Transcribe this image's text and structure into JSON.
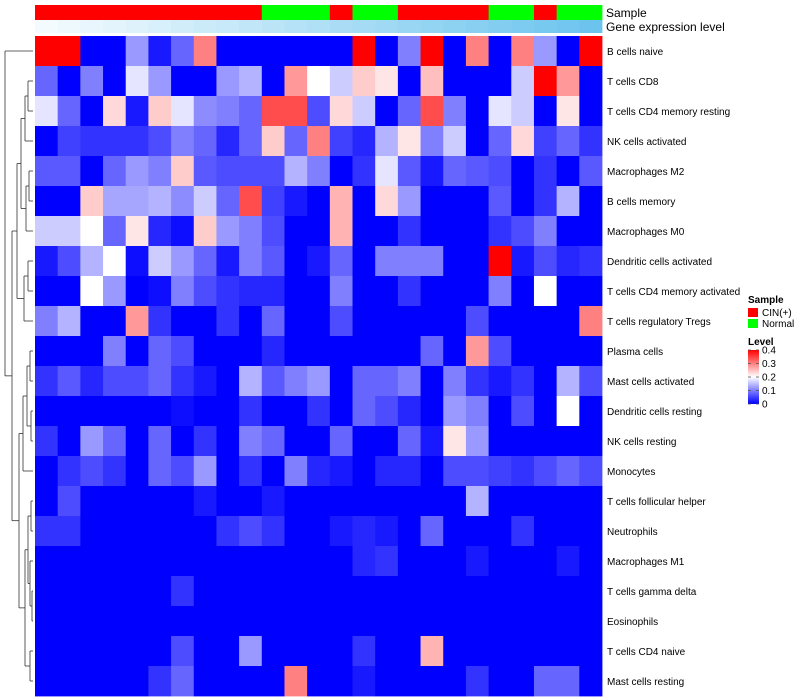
{
  "chart_data": {
    "type": "heatmap",
    "title": "",
    "annotation_tracks": [
      {
        "name": "Sample",
        "label": "Sample"
      },
      {
        "name": "Gene expression level",
        "label": "Gene expression level"
      }
    ],
    "sample_groups": [
      "CIN",
      "CIN",
      "CIN",
      "CIN",
      "CIN",
      "CIN",
      "CIN",
      "CIN",
      "CIN",
      "CIN",
      "Normal",
      "Normal",
      "Normal",
      "CIN",
      "Normal",
      "Normal",
      "CIN",
      "CIN",
      "CIN",
      "CIN",
      "Normal",
      "Normal",
      "CIN",
      "Normal",
      "Normal"
    ],
    "expression_level_index": [
      0,
      1,
      2,
      3,
      4,
      5,
      6,
      7,
      8,
      9,
      10,
      11,
      12,
      13,
      14,
      15,
      16,
      17,
      18,
      19,
      20,
      21,
      22,
      23,
      24
    ],
    "rows": [
      "B cells naive",
      "T cells CD8",
      "T cells CD4 memory resting",
      "NK cells activated",
      "Macrophages M2",
      "B cells memory",
      "Macrophages M0",
      "Dendritic cells activated",
      "T cells CD4 memory activated",
      "T cells regulatory  Tregs",
      "Plasma cells",
      "Mast cells activated",
      "Dendritic cells resting",
      "NK cells resting",
      "Monocytes",
      "T cells follicular helper",
      "Neutrophils",
      "Macrophages M1",
      "T cells gamma delta",
      "Eosinophils",
      "T cells CD4 naive",
      "Mast cells resting"
    ],
    "values": [
      [
        0.4,
        0.4,
        0.0,
        0.0,
        0.12,
        0.02,
        0.08,
        0.3,
        0.0,
        0.0,
        0.0,
        0.0,
        0.0,
        0.0,
        0.4,
        0.0,
        0.1,
        0.4,
        0.0,
        0.3,
        0.0,
        0.3,
        0.12,
        0.0,
        0.4
      ],
      [
        0.08,
        0.0,
        0.1,
        0.0,
        0.18,
        0.12,
        0.0,
        0.0,
        0.12,
        0.14,
        0.0,
        0.28,
        0.2,
        0.16,
        0.24,
        0.22,
        0.0,
        0.25,
        0.0,
        0.0,
        0.0,
        0.16,
        0.4,
        0.28,
        0.0
      ],
      [
        0.18,
        0.08,
        0.0,
        0.23,
        0.02,
        0.24,
        0.18,
        0.11,
        0.1,
        0.08,
        0.34,
        0.34,
        0.06,
        0.23,
        0.16,
        0.0,
        0.08,
        0.34,
        0.1,
        0.0,
        0.18,
        0.16,
        0.0,
        0.22,
        0.0
      ],
      [
        0.0,
        0.05,
        0.04,
        0.04,
        0.04,
        0.06,
        0.1,
        0.08,
        0.03,
        0.08,
        0.24,
        0.08,
        0.3,
        0.05,
        0.03,
        0.14,
        0.22,
        0.1,
        0.16,
        0.0,
        0.08,
        0.23,
        0.05,
        0.08,
        0.04
      ],
      [
        0.07,
        0.07,
        0.0,
        0.08,
        0.12,
        0.1,
        0.24,
        0.07,
        0.06,
        0.06,
        0.06,
        0.14,
        0.1,
        0.0,
        0.04,
        0.18,
        0.07,
        0.02,
        0.08,
        0.07,
        0.06,
        0.0,
        0.04,
        0.0,
        0.07
      ],
      [
        0.0,
        0.0,
        0.24,
        0.13,
        0.13,
        0.14,
        0.11,
        0.16,
        0.08,
        0.34,
        0.05,
        0.02,
        0.0,
        0.26,
        0.0,
        0.23,
        0.12,
        0.0,
        0.0,
        0.0,
        0.07,
        0.0,
        0.04,
        0.14,
        0.0
      ],
      [
        0.16,
        0.16,
        0.2,
        0.08,
        0.22,
        0.03,
        0.01,
        0.24,
        0.12,
        0.1,
        0.06,
        0.0,
        0.0,
        0.26,
        0.0,
        0.0,
        0.04,
        0.0,
        0.0,
        0.0,
        0.04,
        0.06,
        0.1,
        0.0,
        0.0
      ],
      [
        0.02,
        0.06,
        0.14,
        0.2,
        0.01,
        0.16,
        0.12,
        0.08,
        0.02,
        0.1,
        0.07,
        0.0,
        0.02,
        0.08,
        0.0,
        0.1,
        0.1,
        0.1,
        0.0,
        0.0,
        0.4,
        0.02,
        0.06,
        0.03,
        0.04
      ],
      [
        0.0,
        0.0,
        0.2,
        0.12,
        0.0,
        0.01,
        0.1,
        0.06,
        0.04,
        0.03,
        0.03,
        0.0,
        0.0,
        0.1,
        0.0,
        0.0,
        0.04,
        0.0,
        0.0,
        0.0,
        0.1,
        0.0,
        0.2,
        0.0,
        0.0
      ],
      [
        0.1,
        0.14,
        0.0,
        0.0,
        0.28,
        0.04,
        0.0,
        0.0,
        0.04,
        0.0,
        0.08,
        0.0,
        0.0,
        0.06,
        0.0,
        0.0,
        0.0,
        0.0,
        0.0,
        0.06,
        0.0,
        0.0,
        0.0,
        0.0,
        0.3
      ],
      [
        0.0,
        0.0,
        0.0,
        0.1,
        0.0,
        0.08,
        0.06,
        0.0,
        0.0,
        0.0,
        0.03,
        0.0,
        0.0,
        0.0,
        0.0,
        0.0,
        0.0,
        0.08,
        0.0,
        0.28,
        0.06,
        0.0,
        0.0,
        0.0,
        0.0
      ],
      [
        0.04,
        0.07,
        0.03,
        0.06,
        0.06,
        0.08,
        0.04,
        0.02,
        0.0,
        0.14,
        0.07,
        0.1,
        0.12,
        0.0,
        0.08,
        0.08,
        0.1,
        0.0,
        0.1,
        0.04,
        0.02,
        0.04,
        0.0,
        0.14,
        0.06
      ],
      [
        0.0,
        0.0,
        0.0,
        0.0,
        0.0,
        0.0,
        0.01,
        0.0,
        0.0,
        0.04,
        0.0,
        0.0,
        0.04,
        0.0,
        0.08,
        0.06,
        0.03,
        0.0,
        0.12,
        0.1,
        0.0,
        0.06,
        0.0,
        0.2,
        0.0
      ],
      [
        0.04,
        0.0,
        0.12,
        0.08,
        0.0,
        0.08,
        0.0,
        0.04,
        0.0,
        0.1,
        0.08,
        0.0,
        0.0,
        0.08,
        0.0,
        0.0,
        0.08,
        0.02,
        0.22,
        0.12,
        0.0,
        0.0,
        0.0,
        0.0,
        0.0
      ],
      [
        0.0,
        0.04,
        0.06,
        0.04,
        0.0,
        0.08,
        0.06,
        0.12,
        0.0,
        0.04,
        0.0,
        0.1,
        0.03,
        0.02,
        0.0,
        0.03,
        0.03,
        0.0,
        0.06,
        0.06,
        0.05,
        0.04,
        0.06,
        0.08,
        0.06
      ],
      [
        0.0,
        0.06,
        0.0,
        0.0,
        0.0,
        0.0,
        0.0,
        0.02,
        0.0,
        0.0,
        0.02,
        0.0,
        0.0,
        0.0,
        0.0,
        0.0,
        0.0,
        0.0,
        0.0,
        0.14,
        0.0,
        0.0,
        0.0,
        0.0,
        0.0
      ],
      [
        0.04,
        0.04,
        0.0,
        0.0,
        0.0,
        0.0,
        0.0,
        0.0,
        0.04,
        0.06,
        0.04,
        0.0,
        0.0,
        0.02,
        0.03,
        0.02,
        0.0,
        0.08,
        0.0,
        0.0,
        0.0,
        0.04,
        0.0,
        0.0,
        0.0
      ],
      [
        0.0,
        0.0,
        0.0,
        0.0,
        0.0,
        0.0,
        0.0,
        0.0,
        0.0,
        0.0,
        0.0,
        0.0,
        0.0,
        0.0,
        0.03,
        0.04,
        0.0,
        0.0,
        0.0,
        0.02,
        0.0,
        0.0,
        0.0,
        0.02,
        0.0
      ],
      [
        0.0,
        0.0,
        0.0,
        0.0,
        0.0,
        0.0,
        0.04,
        0.0,
        0.0,
        0.0,
        0.0,
        0.0,
        0.0,
        0.0,
        0.0,
        0.0,
        0.0,
        0.0,
        0.0,
        0.0,
        0.0,
        0.0,
        0.0,
        0.0,
        0.0
      ],
      [
        0.0,
        0.0,
        0.0,
        0.0,
        0.0,
        0.0,
        0.0,
        0.0,
        0.0,
        0.0,
        0.0,
        0.0,
        0.0,
        0.0,
        0.0,
        0.0,
        0.0,
        0.0,
        0.0,
        0.0,
        0.0,
        0.0,
        0.0,
        0.0,
        0.0
      ],
      [
        0.0,
        0.0,
        0.0,
        0.0,
        0.0,
        0.0,
        0.06,
        0.0,
        0.0,
        0.12,
        0.0,
        0.0,
        0.0,
        0.0,
        0.04,
        0.0,
        0.0,
        0.26,
        0.0,
        0.0,
        0.0,
        0.0,
        0.0,
        0.0,
        0.0
      ],
      [
        0.0,
        0.0,
        0.0,
        0.0,
        0.0,
        0.04,
        0.08,
        0.0,
        0.0,
        0.0,
        0.0,
        0.3,
        0.0,
        0.0,
        0.02,
        0.0,
        0.0,
        0.0,
        0.0,
        0.04,
        0.0,
        0.0,
        0.08,
        0.08,
        0.0
      ]
    ],
    "color_scale": {
      "min": 0,
      "mid": 0.2,
      "max": 0.4,
      "low": "#0000ff",
      "midcolor": "#ffffff",
      "high": "#ff0000"
    },
    "legends": [
      {
        "title": "Sample",
        "entries": [
          {
            "key": "CIN",
            "label": "CIN(+)",
            "color": "#ff0000"
          },
          {
            "key": "Normal",
            "label": "Normal",
            "color": "#00ff00"
          }
        ]
      },
      {
        "title": "Level",
        "ticks": [
          "0.4",
          "0.3",
          "0.2",
          "0.1",
          "0"
        ],
        "tick_values": [
          0.4,
          0.3,
          0.2,
          0.1,
          0
        ]
      }
    ],
    "expression_track_colors": {
      "start": "#f4fbfe",
      "end": "#6cc4ee"
    }
  }
}
